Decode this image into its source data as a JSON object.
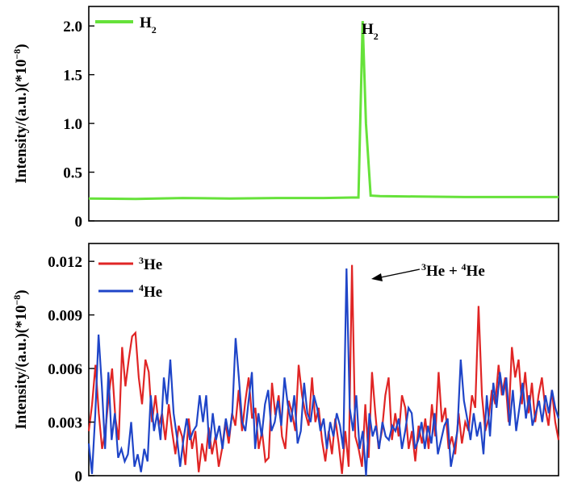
{
  "chart_data": [
    {
      "type": "line",
      "ylabel": {
        "base": "Intensity/(a.u.)(*10",
        "exp": "−8",
        "close": ")"
      },
      "ylim": [
        0,
        2.2
      ],
      "yticks": [
        {
          "v": 0,
          "label": "0"
        },
        {
          "v": 0.5,
          "label": "0.5"
        },
        {
          "v": 1.0,
          "label": "1.0"
        },
        {
          "v": 1.5,
          "label": "1.5"
        },
        {
          "v": 2.0,
          "label": "2.0"
        }
      ],
      "xlim": [
        0,
        100
      ],
      "series": [
        {
          "name": {
            "base": "H",
            "sub": "2"
          },
          "color": "#66e23a",
          "x": [
            0,
            10,
            20,
            30,
            40,
            50,
            56,
            57.4,
            58.3,
            59.0,
            60.0,
            62,
            70,
            80,
            90,
            100
          ],
          "y": [
            0.23,
            0.225,
            0.235,
            0.23,
            0.235,
            0.235,
            0.24,
            0.24,
            2.05,
            1.0,
            0.26,
            0.255,
            0.25,
            0.245,
            0.245,
            0.245
          ]
        }
      ],
      "annotations": [
        {
          "text": {
            "base": "H",
            "sub": "2"
          },
          "x": 58.5,
          "y": 2.0
        }
      ],
      "legend": "top-left",
      "grid": false
    },
    {
      "type": "line",
      "ylabel": {
        "base": "Intensity/(a.u.)(*10",
        "exp": "−8",
        "close": ")"
      },
      "ylim": [
        0,
        0.013
      ],
      "yticks": [
        {
          "v": 0,
          "label": "0"
        },
        {
          "v": 0.003,
          "label": "0.003"
        },
        {
          "v": 0.006,
          "label": "0.006"
        },
        {
          "v": 0.009,
          "label": "0.009"
        },
        {
          "v": 0.012,
          "label": "0.012"
        }
      ],
      "xlim": [
        0,
        100
      ],
      "series": [
        {
          "name": {
            "sup": "3",
            "base": "He"
          },
          "color": "#e02525",
          "y": [
            0.0025,
            0.004,
            0.0062,
            0.0035,
            0.0015,
            0.0025,
            0.0045,
            0.006,
            0.0032,
            0.002,
            0.0072,
            0.005,
            0.0065,
            0.0078,
            0.008,
            0.0055,
            0.004,
            0.0065,
            0.0058,
            0.003,
            0.0045,
            0.0028,
            0.0035,
            0.002,
            0.004,
            0.0025,
            0.0012,
            0.0028,
            0.0022,
            0.0006,
            0.0032,
            0.0015,
            0.0025,
            0.0002,
            0.0018,
            0.0008,
            0.0027,
            0.0012,
            0.0022,
            0.0005,
            0.0015,
            0.003,
            0.0018,
            0.0035,
            0.0028,
            0.0048,
            0.0025,
            0.0042,
            0.0055,
            0.0032,
            0.0038,
            0.0015,
            0.0025,
            0.0008,
            0.001,
            0.0052,
            0.0034,
            0.0045,
            0.0022,
            0.0015,
            0.0042,
            0.0035,
            0.0025,
            0.0062,
            0.0045,
            0.0035,
            0.0028,
            0.0055,
            0.003,
            0.0038,
            0.002,
            0.0008,
            0.0025,
            0.0012,
            0.0032,
            0.0018,
            0.0001,
            0.0025,
            0.0005,
            0.0118,
            0.0022,
            0.0015,
            0.0005,
            0.004,
            0.001,
            0.0058,
            0.0035,
            0.0015,
            0.0025,
            0.0045,
            0.0055,
            0.002,
            0.0035,
            0.0022,
            0.0045,
            0.0038,
            0.0015,
            0.0025,
            0.0008,
            0.0028,
            0.0018,
            0.0032,
            0.0015,
            0.004,
            0.0022,
            0.0058,
            0.003,
            0.0038,
            0.0015,
            0.0022,
            0.0012,
            0.0035,
            0.0018,
            0.003,
            0.0025,
            0.0045,
            0.0038,
            0.0095,
            0.0045,
            0.0025,
            0.0032,
            0.0048,
            0.004,
            0.0062,
            0.0045,
            0.0055,
            0.003,
            0.0072,
            0.0055,
            0.0065,
            0.004,
            0.0058,
            0.0035,
            0.0052,
            0.003,
            0.0045,
            0.0055,
            0.0038,
            0.0028,
            0.0048,
            0.003,
            0.002
          ]
        },
        {
          "name": {
            "sup": "4",
            "base": "He"
          },
          "color": "#1f45c8",
          "y": [
            0.0018,
            0.0001,
            0.0035,
            0.0079,
            0.005,
            0.0015,
            0.0058,
            0.002,
            0.0035,
            0.001,
            0.0015,
            0.0008,
            0.0012,
            0.003,
            0.0005,
            0.0012,
            0.0002,
            0.0015,
            0.0008,
            0.0045,
            0.0025,
            0.0035,
            0.002,
            0.0055,
            0.004,
            0.0065,
            0.0035,
            0.0022,
            0.0005,
            0.002,
            0.0032,
            0.002,
            0.0025,
            0.0028,
            0.0045,
            0.003,
            0.0045,
            0.0015,
            0.0035,
            0.002,
            0.0028,
            0.0015,
            0.0032,
            0.0022,
            0.0035,
            0.0077,
            0.0055,
            0.003,
            0.0025,
            0.0042,
            0.0058,
            0.0015,
            0.0035,
            0.0022,
            0.004,
            0.0048,
            0.0025,
            0.003,
            0.0042,
            0.0028,
            0.0055,
            0.004,
            0.003,
            0.0045,
            0.0018,
            0.0025,
            0.0052,
            0.0035,
            0.003,
            0.0045,
            0.0038,
            0.0025,
            0.0032,
            0.0015,
            0.003,
            0.0022,
            0.0035,
            0.0028,
            0.0015,
            0.0116,
            0.0038,
            0.0025,
            0.0045,
            0.0015,
            0.0025,
            0.0,
            0.0035,
            0.0022,
            0.0028,
            0.0015,
            0.003,
            0.0022,
            0.002,
            0.0028,
            0.0025,
            0.0032,
            0.0015,
            0.0025,
            0.0038,
            0.0035,
            0.0015,
            0.002,
            0.003,
            0.0015,
            0.0028,
            0.0018,
            0.0035,
            0.0012,
            0.002,
            0.0028,
            0.0032,
            0.0005,
            0.0015,
            0.0025,
            0.0065,
            0.0042,
            0.0032,
            0.002,
            0.0035,
            0.0022,
            0.003,
            0.0012,
            0.0045,
            0.0022,
            0.0052,
            0.0038,
            0.0058,
            0.0045,
            0.0055,
            0.0028,
            0.0048,
            0.0025,
            0.0038,
            0.0052,
            0.0032,
            0.0045,
            0.0028,
            0.0035,
            0.0042,
            0.003,
            0.0045,
            0.0035,
            0.0048,
            0.0038,
            0.0032
          ]
        }
      ],
      "annotations": [
        {
          "text": {
            "sup1": "3",
            "mid": "He + ",
            "sup2": "4",
            "end": "He"
          },
          "x": 59.5,
          "y": 0.0118
        }
      ],
      "legend": "top-left",
      "grid": false
    }
  ]
}
